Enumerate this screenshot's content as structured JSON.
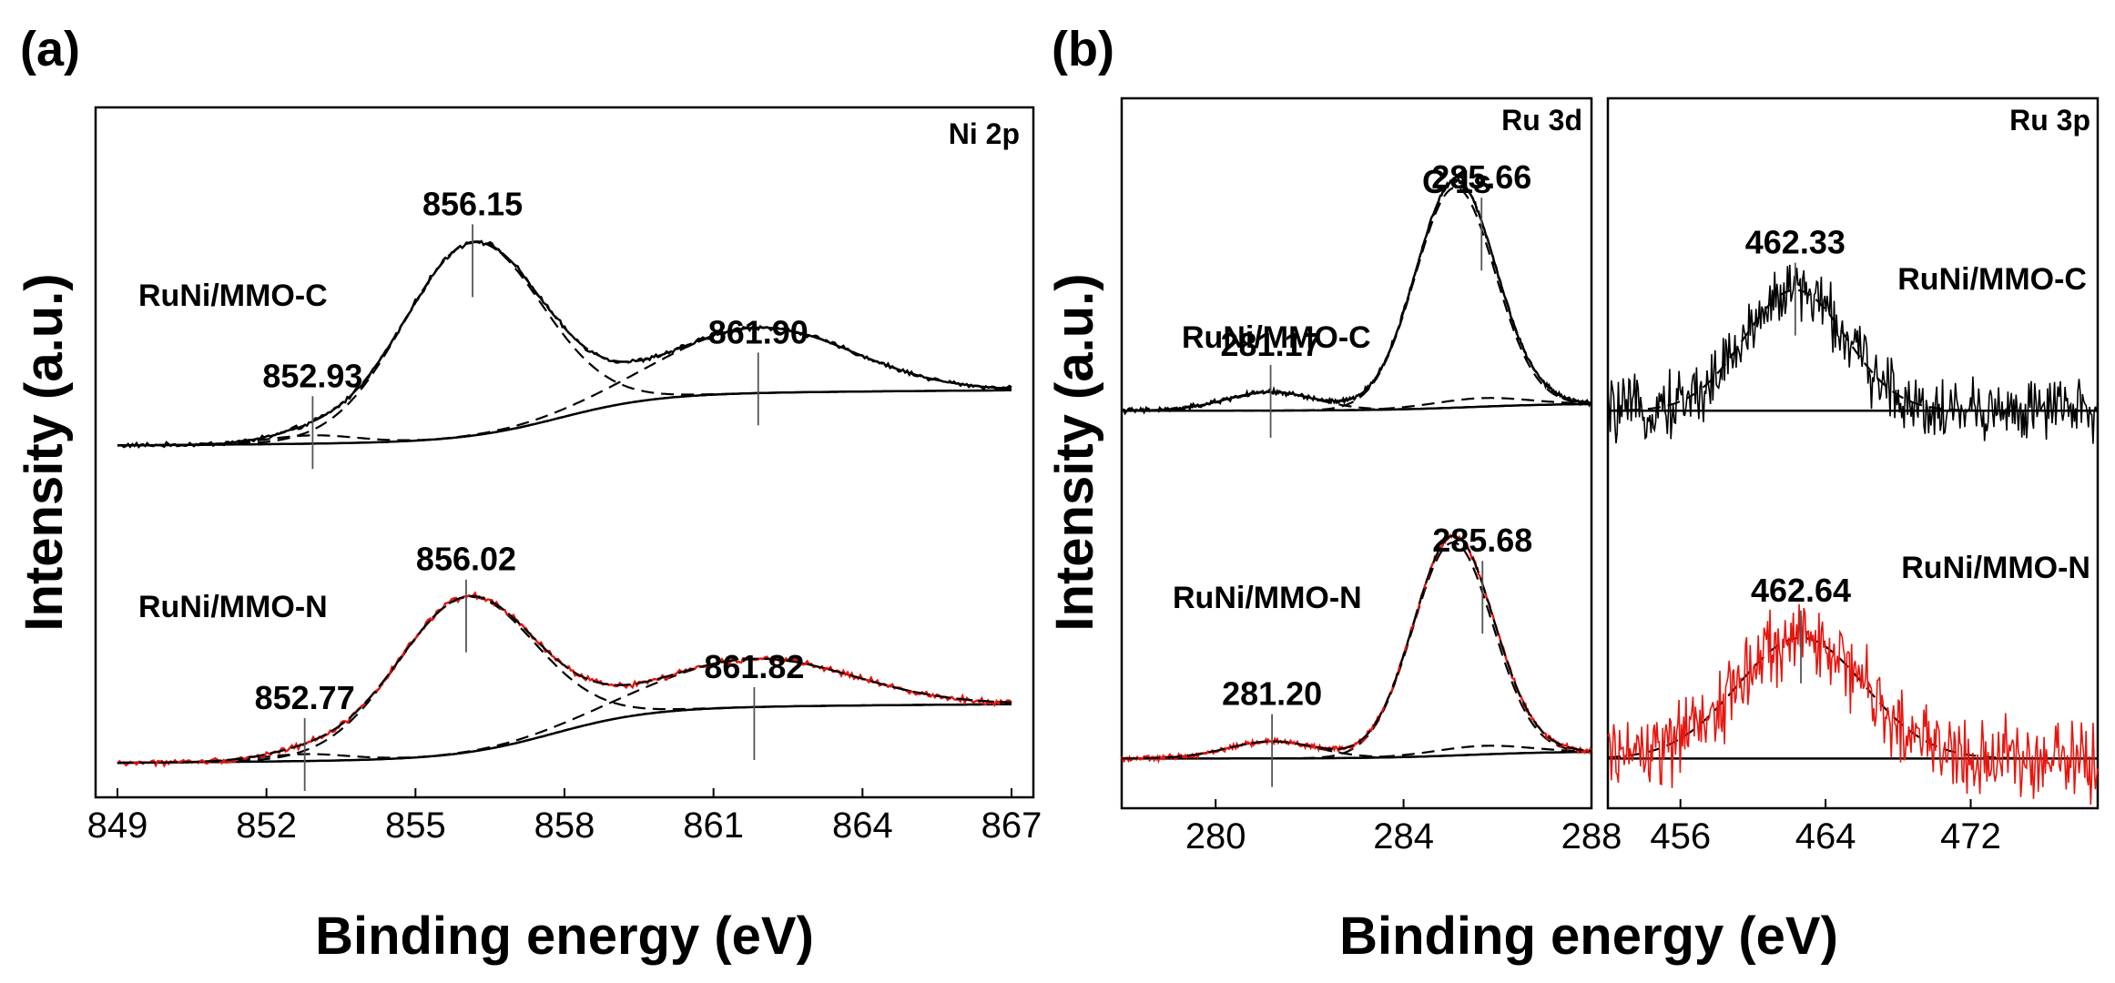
{
  "chart_data": [
    {
      "panel": "(a)",
      "type": "line",
      "title": "Ni 2p",
      "xlabel": "Binding energy (eV)",
      "ylabel": "Intensity (a.u.)",
      "xlim": [
        849,
        867
      ],
      "ylim": [
        0,
        1
      ],
      "xticks": [
        849,
        852,
        855,
        858,
        861,
        864,
        867
      ],
      "colors": {
        "exp_C": "#000000",
        "exp_N": "#e8150f",
        "fit": "#000000"
      },
      "series": [
        {
          "name": "RuNi/MMO-C",
          "baseline": [
            0.51,
            0.01,
            0.7,
            7.0
          ],
          "peaks": [
            [
              856.15,
              0.28,
              1.4
            ],
            [
              861.9,
              0.095,
              1.9
            ],
            [
              852.93,
              0.012,
              0.9
            ]
          ],
          "noise": 0.004
        },
        {
          "name": "RuNi/MMO-N",
          "baseline": [
            0.05,
            0.01,
            0.75,
            7.0
          ],
          "peaks": [
            [
              856.02,
              0.225,
              1.4
            ],
            [
              861.82,
              0.07,
              2.0
            ],
            [
              852.77,
              0.01,
              0.9
            ]
          ],
          "noise": 0.005
        }
      ],
      "peak_labels": [
        {
          "text": "856.15",
          "x": 856.15,
          "series": 0
        },
        {
          "text": "861.90",
          "x": 861.9,
          "series": 0
        },
        {
          "text": "852.93",
          "x": 852.93,
          "series": 0
        },
        {
          "text": "856.02",
          "x": 856.02,
          "series": 1
        },
        {
          "text": "861.82",
          "x": 861.82,
          "series": 1
        },
        {
          "text": "852.77",
          "x": 852.77,
          "series": 1
        }
      ],
      "sample_labels": [
        "RuNi/MMO-C",
        "RuNi/MMO-N"
      ]
    },
    {
      "panel": "(b)",
      "type": "line",
      "title": "Ru 3d",
      "xlabel": "Binding energy (eV)",
      "ylabel": "Intensity (a.u.)",
      "xlim": [
        278,
        288
      ],
      "ylim": [
        0,
        1
      ],
      "xticks": [
        280,
        284,
        288
      ],
      "annotation": "C 1s",
      "colors": {
        "exp_C": "#000000",
        "exp_N": "#e8150f",
        "fit": "#000000"
      },
      "series": [
        {
          "name": "RuNi/MMO-C",
          "baseline": [
            0.56,
            0.0,
            0.1,
            1.2
          ],
          "peaks": [
            [
              285.1,
              0.31,
              0.85
            ],
            [
              281.17,
              0.026,
              0.95
            ],
            [
              285.66,
              0.012,
              1.0
            ]
          ],
          "noise": 0.004
        },
        {
          "name": "RuNi/MMO-N",
          "baseline": [
            0.07,
            0.0,
            0.1,
            1.2
          ],
          "peaks": [
            [
              285.05,
              0.3,
              0.85
            ],
            [
              281.2,
              0.024,
              0.95
            ],
            [
              285.68,
              0.012,
              1.0
            ]
          ],
          "noise": 0.004
        }
      ],
      "peak_labels": [
        {
          "text": "281.17",
          "x": 281.17,
          "series": 0
        },
        {
          "text": "285.66",
          "x": 285.66,
          "series": 0
        },
        {
          "text": "281.20",
          "x": 281.2,
          "series": 1
        },
        {
          "text": "285.68",
          "x": 285.68,
          "series": 1
        }
      ],
      "sample_labels": [
        "RuNi/MMO-C",
        "RuNi/MMO-N"
      ]
    },
    {
      "panel": "(b)",
      "type": "line",
      "title": "Ru 3p",
      "xlabel": "Binding energy (eV)",
      "ylabel": "Intensity (a.u.)",
      "xlim": [
        452,
        479
      ],
      "ylim": [
        0,
        1
      ],
      "xticks": [
        456,
        464,
        472
      ],
      "colors": {
        "exp_C": "#000000",
        "exp_N": "#e8150f",
        "fit": "#000000"
      },
      "series": [
        {
          "name": "RuNi/MMO-C",
          "baseline": [
            0.56,
            0.0,
            0.0,
            1.0
          ],
          "peaks": [
            [
              462.33,
              0.17,
              2.8
            ]
          ],
          "noise": 0.055
        },
        {
          "name": "RuNi/MMO-N",
          "baseline": [
            0.07,
            0.0,
            0.0,
            1.0
          ],
          "peaks": [
            [
              462.64,
              0.17,
              3.5
            ]
          ],
          "noise": 0.07
        }
      ],
      "peak_labels": [
        {
          "text": "462.33",
          "x": 462.33,
          "series": 0
        },
        {
          "text": "462.64",
          "x": 462.64,
          "series": 1
        }
      ],
      "sample_labels": [
        "RuNi/MMO-C",
        "RuNi/MMO-N"
      ]
    }
  ]
}
